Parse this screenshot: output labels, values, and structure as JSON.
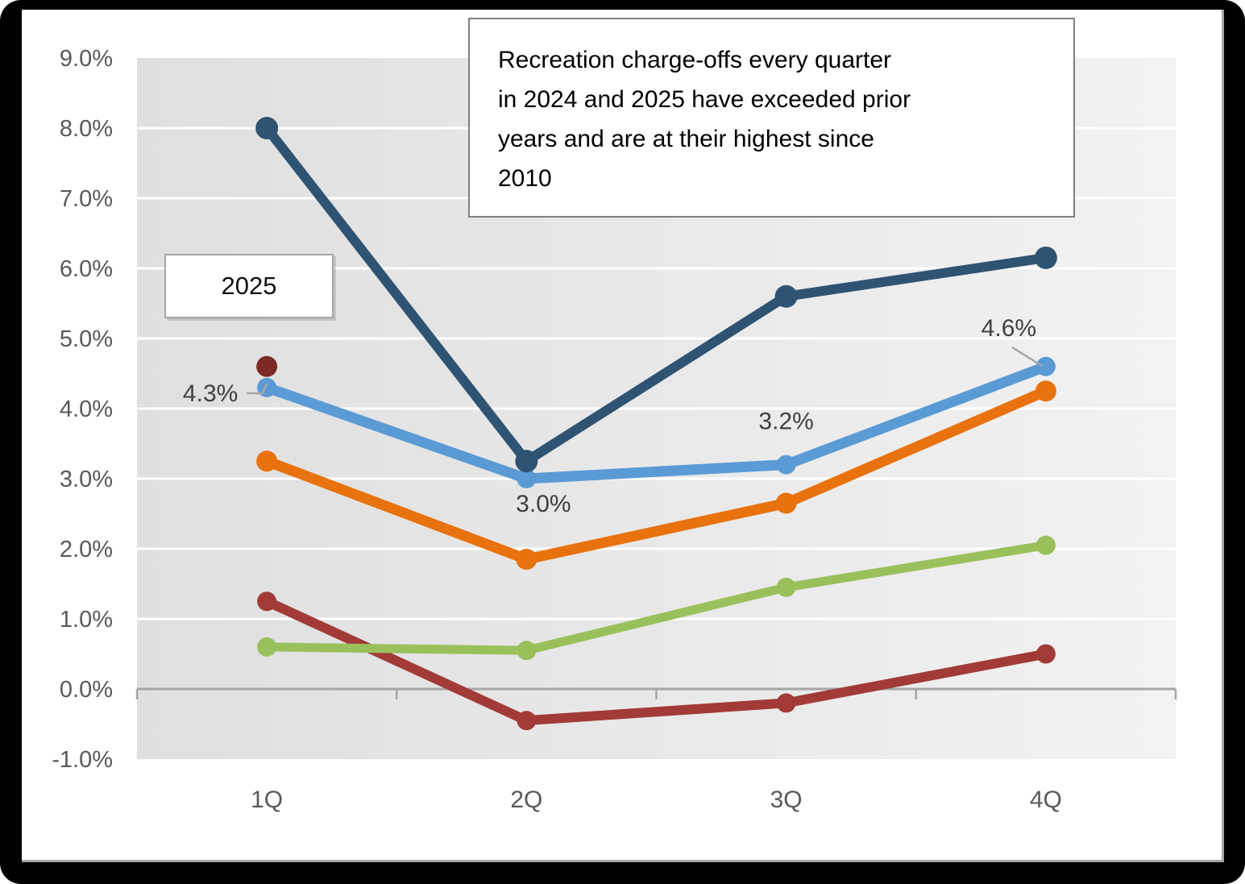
{
  "title_box": {
    "lines": [
      "Recreation charge-offs every quarter",
      "in 2024 and 2025 have exceeded prior",
      "years and are at their highest since",
      "2010"
    ]
  },
  "callout_2025": {
    "label": "2025"
  },
  "chart_data": {
    "type": "line",
    "categories": [
      "1Q",
      "2Q",
      "3Q",
      "4Q"
    ],
    "y_axis": {
      "ticks": [
        "9.0%",
        "8.0%",
        "7.0%",
        "6.0%",
        "5.0%",
        "4.0%",
        "3.0%",
        "2.0%",
        "1.0%",
        "0.0%",
        "-1.0%"
      ],
      "min": -1,
      "max": 9,
      "step": 1,
      "format": "percent"
    },
    "grid": "horizontal-white-on-gray",
    "legend": "none",
    "series": [
      {
        "name": "series-dark-red",
        "color": "#a23b38",
        "values": [
          1.25,
          -0.45,
          -0.2,
          0.5
        ]
      },
      {
        "name": "series-green",
        "color": "#9ac05c",
        "values": [
          0.6,
          0.55,
          1.45,
          2.05
        ]
      },
      {
        "name": "series-orange",
        "color": "#e8720d",
        "values": [
          3.25,
          1.85,
          2.65,
          4.25
        ]
      },
      {
        "name": "series-light-blue",
        "color": "#5b9bd5",
        "values": [
          4.3,
          3.0,
          3.2,
          4.6
        ],
        "point_labels": [
          "4.3%",
          "3.0%",
          "3.2%",
          "4.6%"
        ]
      },
      {
        "name": "series-navy",
        "color": "#2f5373",
        "values": [
          8.0,
          3.25,
          5.6,
          6.15
        ]
      },
      {
        "name": "series-2025-point",
        "color": "#7d2a24",
        "values": [
          4.6,
          null,
          null,
          null
        ],
        "marker_only": true
      }
    ],
    "style_colors": {
      "plot_bg_left": "#dfdfdf",
      "plot_bg_right": "#f2f2f2",
      "gridline": "#ffffff",
      "axis_line": "#a6a6a6",
      "axis_text": "#595959",
      "data_label_text": "#404040",
      "leader_line": "#a6a6a6"
    }
  }
}
